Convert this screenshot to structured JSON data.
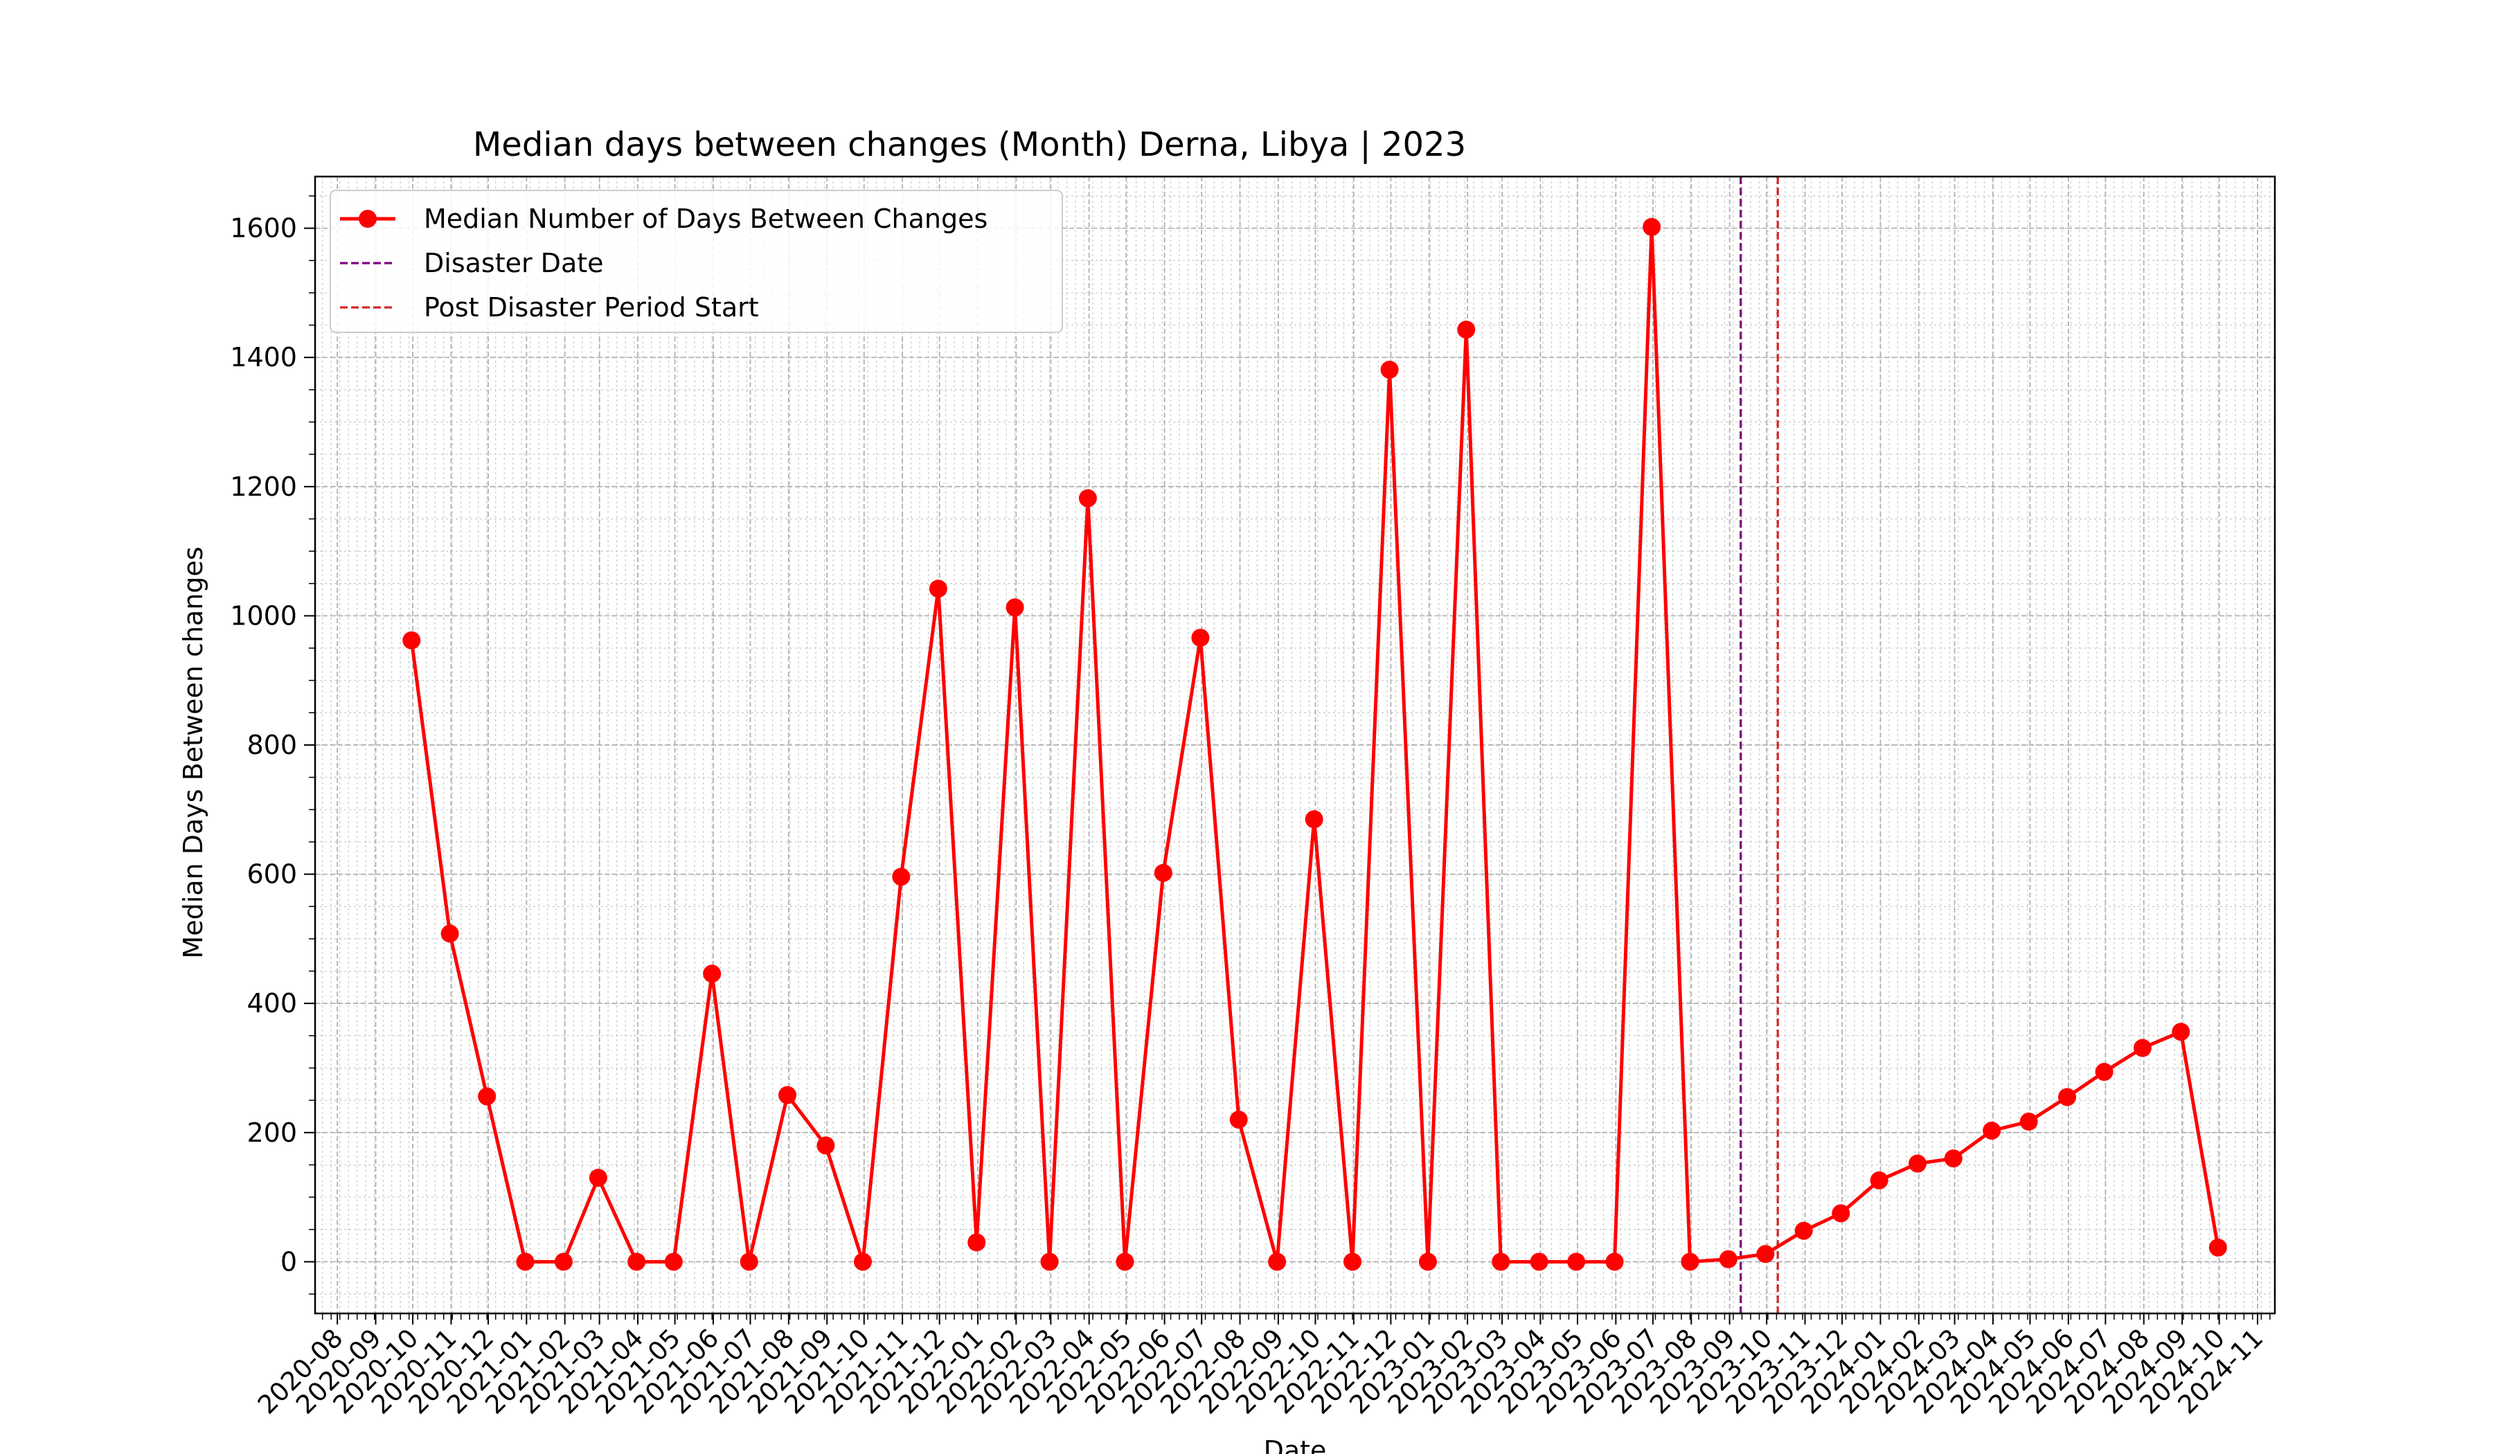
{
  "chart_data": {
    "type": "line",
    "title": "Median days between changes (Month) Derna, Libya | 2023",
    "xlabel": "Date",
    "ylabel": "Median Days Between changes",
    "xlim": [
      "2020-07-14",
      "2024-11-15"
    ],
    "ylim": [
      -80,
      1680
    ],
    "yticks": [
      0,
      200,
      400,
      600,
      800,
      1000,
      1200,
      1400,
      1600
    ],
    "y_minor_step": 50,
    "xtick_labels": [
      "2020-08",
      "2020-09",
      "2020-10",
      "2020-11",
      "2020-12",
      "2021-01",
      "2021-02",
      "2021-03",
      "2021-04",
      "2021-05",
      "2021-06",
      "2021-07",
      "2021-08",
      "2021-09",
      "2021-10",
      "2021-11",
      "2021-12",
      "2022-01",
      "2022-02",
      "2022-03",
      "2022-04",
      "2022-05",
      "2022-06",
      "2022-07",
      "2022-08",
      "2022-09",
      "2022-10",
      "2022-11",
      "2022-12",
      "2023-01",
      "2023-02",
      "2023-03",
      "2023-04",
      "2023-05",
      "2023-06",
      "2023-07",
      "2023-08",
      "2023-09",
      "2023-10",
      "2023-11",
      "2023-12",
      "2024-01",
      "2024-02",
      "2024-03",
      "2024-04",
      "2024-05",
      "2024-06",
      "2024-07",
      "2024-08",
      "2024-09",
      "2024-10",
      "2024-11"
    ],
    "grid": true,
    "legend_position": "upper-left",
    "series": [
      {
        "name": "Median Number of Days Between Changes",
        "color": "#ff0000",
        "marker": "circle",
        "x": [
          "2020-09-30",
          "2020-10-31",
          "2020-11-30",
          "2020-12-31",
          "2021-01-31",
          "2021-02-28",
          "2021-03-31",
          "2021-04-30",
          "2021-05-31",
          "2021-06-30",
          "2021-07-31",
          "2021-08-31",
          "2021-09-30",
          "2021-10-31",
          "2021-11-30",
          "2021-12-31",
          "2022-01-31",
          "2022-02-28",
          "2022-03-31",
          "2022-04-30",
          "2022-05-31",
          "2022-06-30",
          "2022-07-31",
          "2022-08-31",
          "2022-09-30",
          "2022-10-31",
          "2022-11-30",
          "2022-12-31",
          "2023-01-31",
          "2023-02-28",
          "2023-03-31",
          "2023-04-30",
          "2023-05-31",
          "2023-06-30",
          "2023-07-31",
          "2023-08-31",
          "2023-09-30",
          "2023-10-31",
          "2023-11-30",
          "2023-12-31",
          "2024-01-31",
          "2024-02-29",
          "2024-03-31",
          "2024-04-30",
          "2024-05-31",
          "2024-06-30",
          "2024-07-31",
          "2024-08-31",
          "2024-09-30"
        ],
        "values": [
          962,
          508,
          256,
          0,
          0,
          130,
          0,
          0,
          446,
          0,
          258,
          180,
          0,
          596,
          1042,
          30,
          1013,
          0,
          1182,
          0,
          602,
          966,
          220,
          0,
          685,
          0,
          1381,
          0,
          1443,
          0,
          0,
          0,
          0,
          1602,
          0,
          4,
          12,
          48,
          75,
          126,
          152,
          160,
          203,
          217,
          255,
          294,
          331,
          356,
          22
        ]
      }
    ],
    "vlines": [
      {
        "name": "Disaster Date",
        "x": "2023-09-10",
        "color": "#800080",
        "style": "dashed"
      },
      {
        "name": "Post Disaster Period Start",
        "x": "2023-10-10",
        "color": "#d62728",
        "style": "dashed"
      }
    ]
  }
}
